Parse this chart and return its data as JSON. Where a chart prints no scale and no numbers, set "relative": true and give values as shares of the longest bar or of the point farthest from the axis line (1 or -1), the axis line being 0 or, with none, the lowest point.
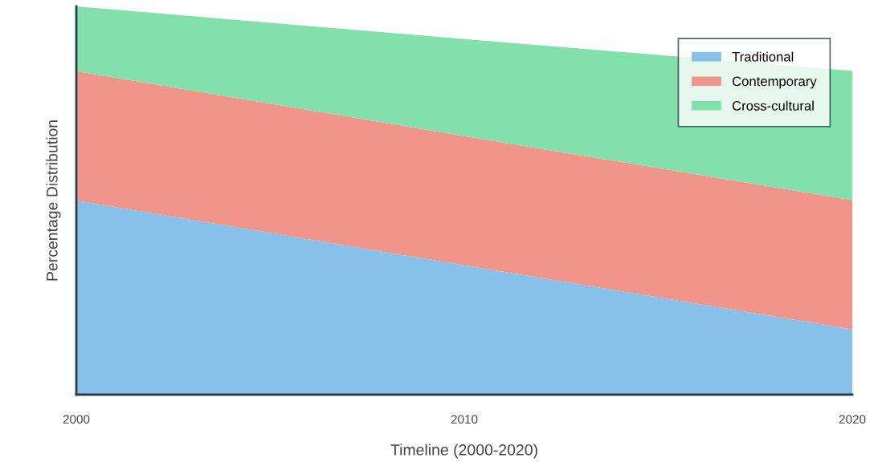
{
  "chart_data": {
    "type": "area",
    "stacked": true,
    "relative": true,
    "xlabel": "Timeline (2000-2020)",
    "ylabel": "Percentage Distribution",
    "x": [
      2000,
      2010,
      2020
    ],
    "xlim": [
      2000,
      2020
    ],
    "xticks": [
      2000,
      2010,
      2020
    ],
    "grid": false,
    "legend": "top right",
    "series": [
      {
        "name": "Traditional",
        "color": "#85c1e9",
        "values": [
          0.5,
          0.333,
          0.168
        ]
      },
      {
        "name": "Contemporary",
        "color": "#f1948a",
        "values": [
          0.333,
          0.333,
          0.333
        ]
      },
      {
        "name": "Cross-cultural",
        "color": "#82e0aa",
        "values": [
          0.167,
          0.25,
          0.333
        ]
      }
    ]
  }
}
